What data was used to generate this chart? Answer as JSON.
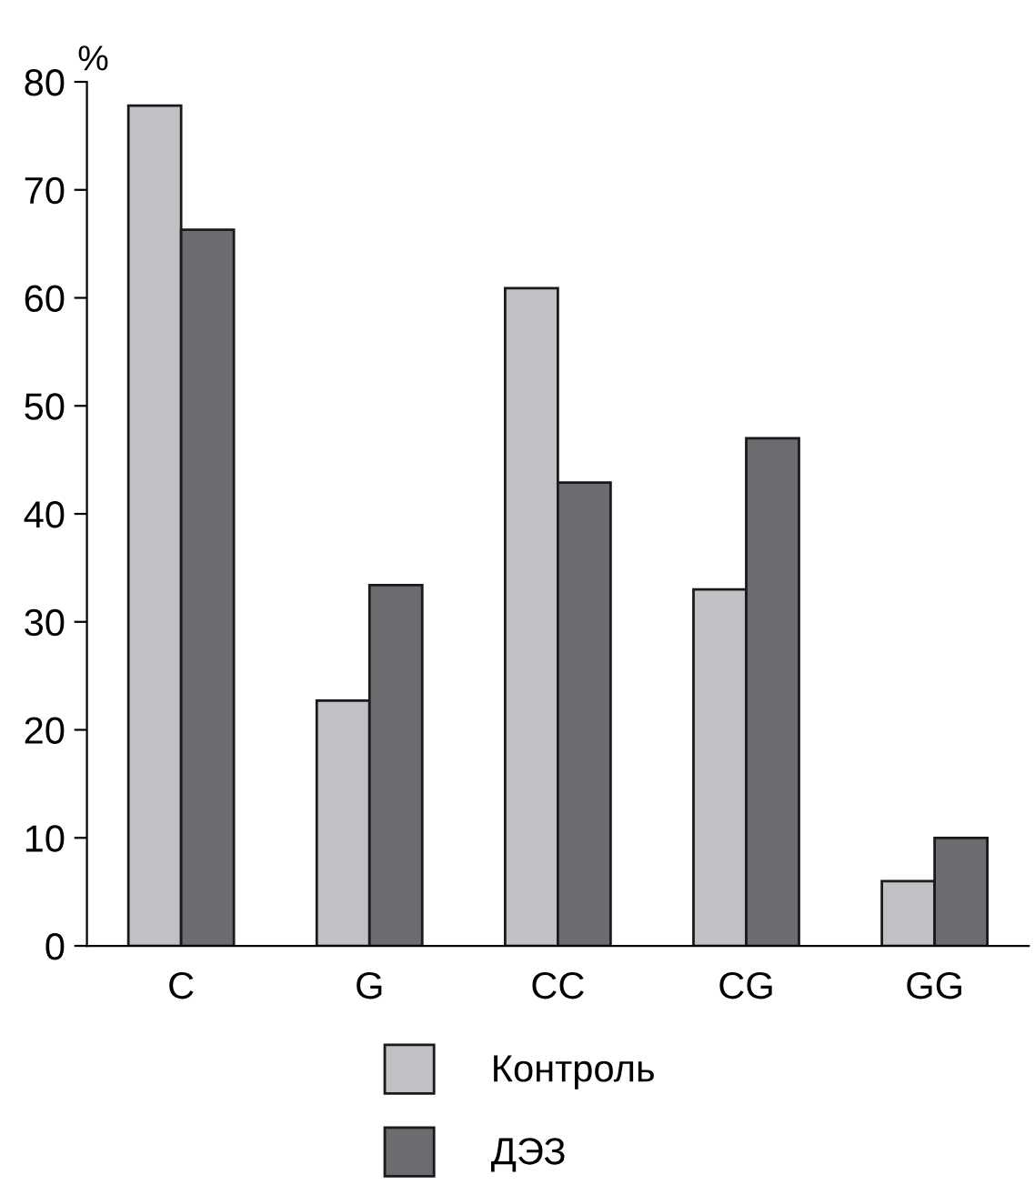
{
  "chart_data": {
    "type": "bar",
    "ylabel": "%",
    "categories": [
      "C",
      "G",
      "CC",
      "CG",
      "GG"
    ],
    "series": [
      {
        "name": "Контроль",
        "color": "#c0c1c5",
        "values": [
          77.8,
          22.7,
          60.9,
          33.0,
          6.0
        ]
      },
      {
        "name": "ДЭЗ",
        "color": "#6b6c70",
        "values": [
          66.3,
          33.4,
          42.9,
          47.0,
          10.0
        ]
      }
    ],
    "ylim": [
      0,
      80
    ],
    "yticks": [
      0,
      10,
      20,
      30,
      40,
      50,
      60,
      70,
      80
    ],
    "grid": false,
    "legend": "bottom"
  }
}
